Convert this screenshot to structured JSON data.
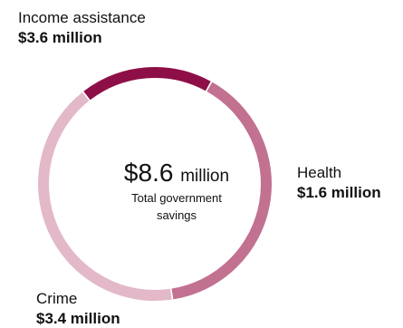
{
  "chart_data": {
    "type": "pie",
    "categories": [
      "Income assistance",
      "Health",
      "Crime"
    ],
    "values": [
      3.6,
      1.6,
      3.4
    ],
    "value_labels": [
      "$3.6 million",
      "$1.6 million",
      "$3.4 million"
    ],
    "colors": [
      "#e3b8c9",
      "#8e0f47",
      "#c27191"
    ],
    "center": {
      "value": "$8.6",
      "unit": "million",
      "caption": "Total government savings"
    }
  }
}
